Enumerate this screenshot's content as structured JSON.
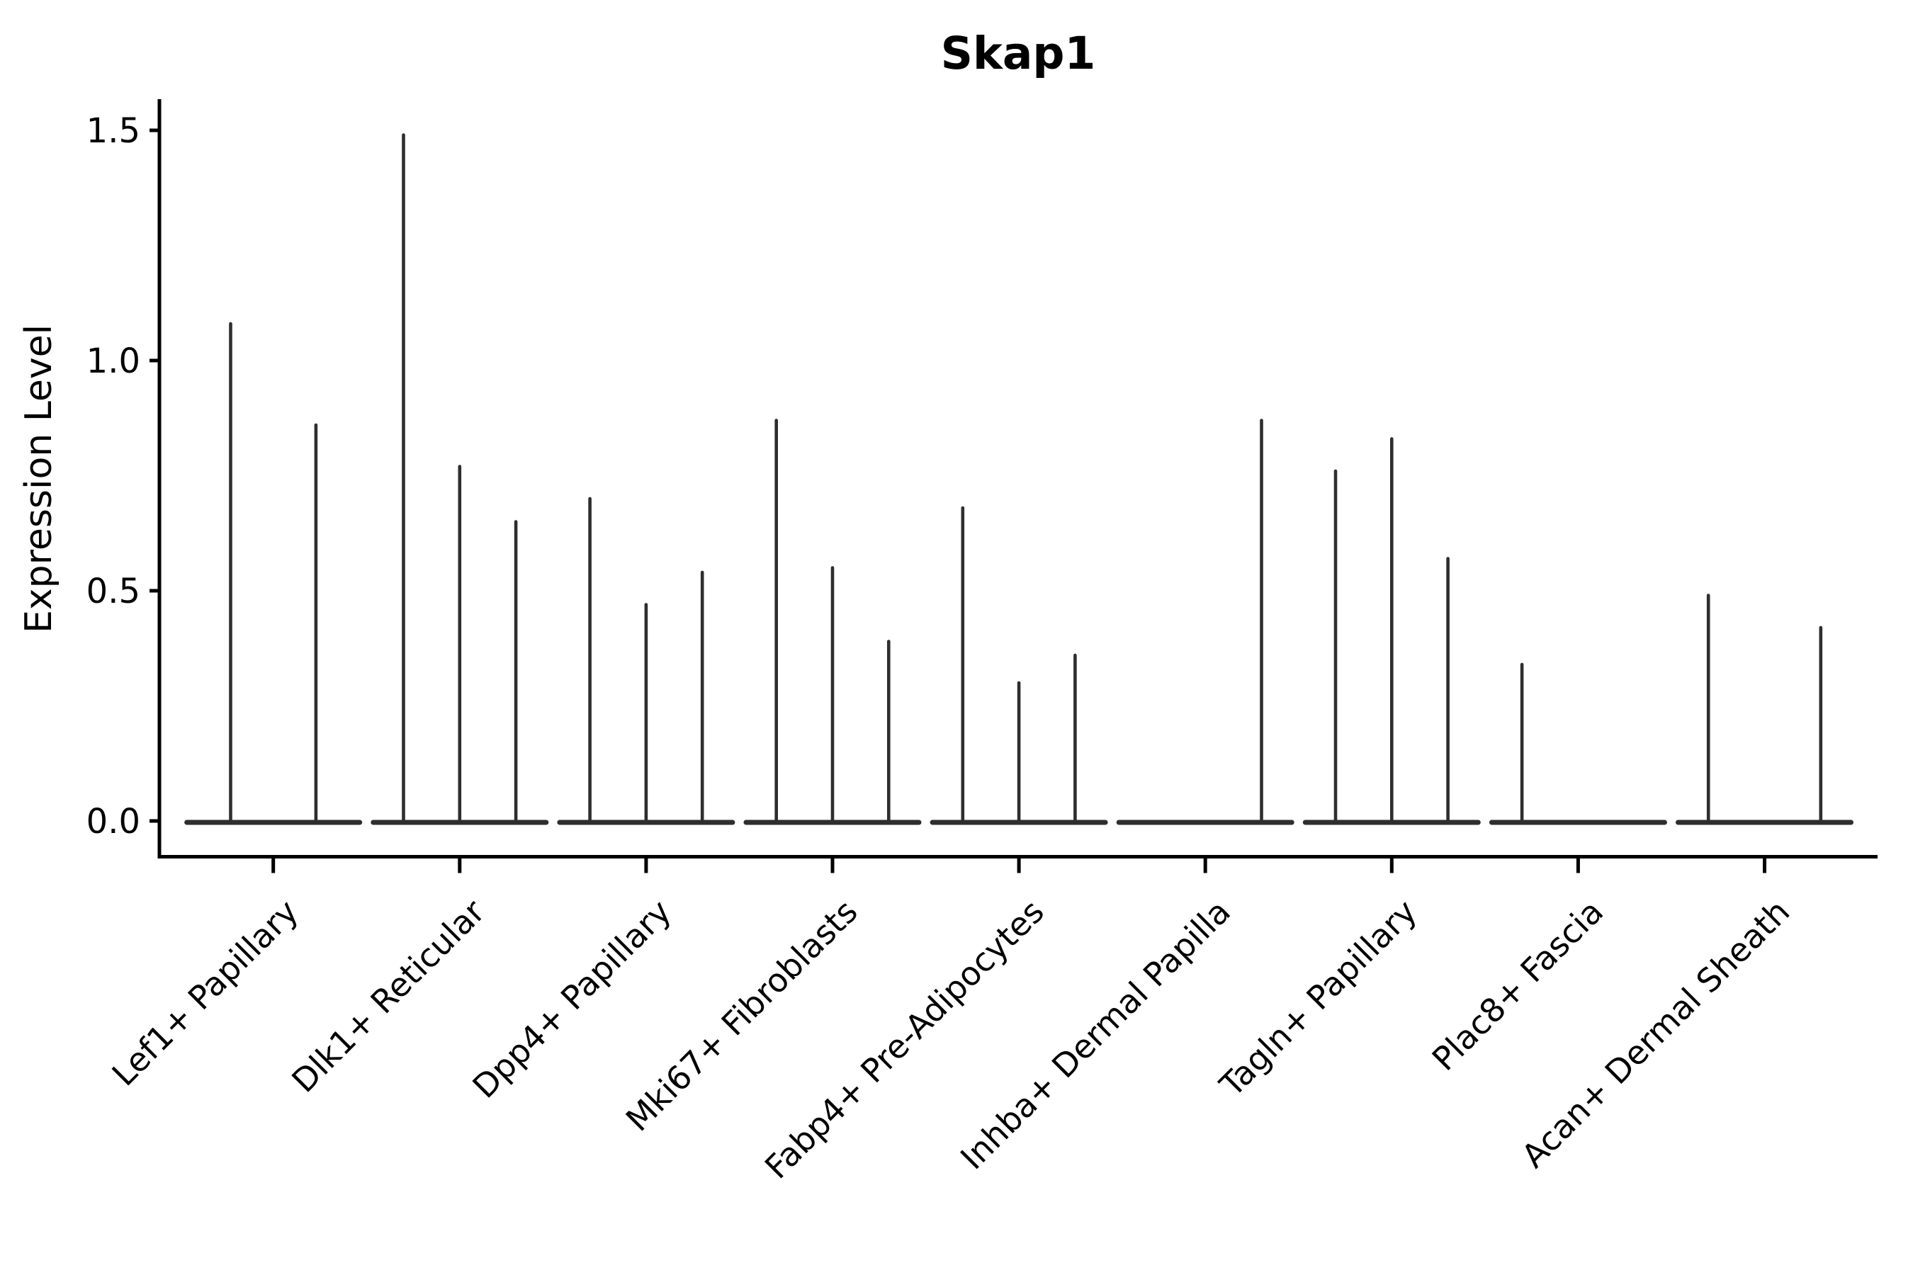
{
  "page": {
    "background_color": "#ffffff",
    "text_color": "#000000",
    "violin_color": "#2e2e2e",
    "axis_color": "#000000"
  },
  "chart_data": {
    "type": "violin",
    "title": "Skap1",
    "xlabel": "",
    "ylabel": "Expression Level",
    "grid": false,
    "legend": false,
    "ylim": [
      0,
      1.56
    ],
    "ytick_values": [
      0.0,
      0.5,
      1.0,
      1.5
    ],
    "ytick_labels": [
      "0.0",
      "0.5",
      "1.0",
      "1.5"
    ],
    "categories": [
      "Lef1+ Papillary",
      "Dlk1+ Reticular",
      "Dpp4+ Papillary",
      "Mki67+ Fibroblasts",
      "Fabp4+ Pre-Adipocytes",
      "Inhba+ Dermal Papilla",
      "Tagln+ Papillary",
      "Plac8+ Fascia",
      "Acan+ Dermal Sheath"
    ],
    "groups": [
      {
        "label": "Lef1+ Papillary",
        "violin_maxima": [
          1.08,
          0.86
        ]
      },
      {
        "label": "Dlk1+ Reticular",
        "violin_maxima": [
          1.49,
          0.77,
          0.65
        ]
      },
      {
        "label": "Dpp4+ Papillary",
        "violin_maxima": [
          0.7,
          0.47,
          0.54
        ]
      },
      {
        "label": "Mki67+ Fibroblasts",
        "violin_maxima": [
          0.87,
          0.55,
          0.39
        ]
      },
      {
        "label": "Fabp4+ Pre-Adipocytes",
        "violin_maxima": [
          0.68,
          0.3,
          0.36
        ]
      },
      {
        "label": "Inhba+ Dermal Papilla",
        "violin_maxima": [
          0.0,
          0.0,
          0.87
        ]
      },
      {
        "label": "Tagln+ Papillary",
        "violin_maxima": [
          0.76,
          0.83,
          0.57
        ]
      },
      {
        "label": "Plac8+ Fascia",
        "violin_maxima": [
          0.34,
          0.0,
          0.0
        ]
      },
      {
        "label": "Acan+ Dermal Sheath",
        "violin_maxima": [
          0.49,
          0.0,
          0.42
        ]
      }
    ]
  }
}
